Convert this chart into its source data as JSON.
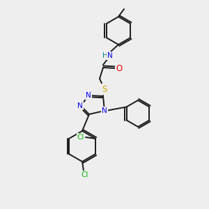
{
  "background_color": "#eeeeee",
  "bond_color": "#1a1a1a",
  "atom_colors": {
    "N": "#0000ee",
    "O": "#ee0000",
    "S": "#ccaa00",
    "Cl": "#00bb00",
    "H": "#008080",
    "C": "#1a1a1a"
  },
  "title": ""
}
